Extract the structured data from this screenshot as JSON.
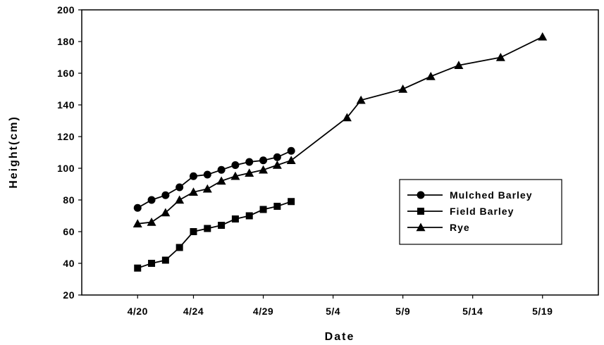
{
  "chart_data": {
    "type": "line",
    "title": "",
    "xlabel": "Date",
    "ylabel": "Height(cm)",
    "ylim": [
      20,
      200
    ],
    "yticks": [
      "20",
      "40",
      "60",
      "80",
      "100",
      "120",
      "140",
      "160",
      "180",
      "200"
    ],
    "xlim": [
      "2000-04-16",
      "2000-05-23"
    ],
    "xticks": [
      {
        "label": "4/20",
        "date": "2000-04-20"
      },
      {
        "label": "4/24",
        "date": "2000-04-24"
      },
      {
        "label": "4/29",
        "date": "2000-04-29"
      },
      {
        "label": "5/4",
        "date": "2000-05-04"
      },
      {
        "label": "5/9",
        "date": "2000-05-09"
      },
      {
        "label": "5/14",
        "date": "2000-05-14"
      },
      {
        "label": "5/19",
        "date": "2000-05-19"
      }
    ],
    "grid": false,
    "legend_position": "right",
    "series": [
      {
        "name": "Mulched Barley",
        "marker": "circle",
        "x": [
          "2000-04-20",
          "2000-04-21",
          "2000-04-22",
          "2000-04-23",
          "2000-04-24",
          "2000-04-25",
          "2000-04-26",
          "2000-04-27",
          "2000-04-28",
          "2000-04-29",
          "2000-04-30",
          "2000-05-01"
        ],
        "y": [
          75,
          80,
          83,
          88,
          95,
          96,
          99,
          102,
          104,
          105,
          107,
          111
        ]
      },
      {
        "name": "Field Barley",
        "marker": "square",
        "x": [
          "2000-04-20",
          "2000-04-21",
          "2000-04-22",
          "2000-04-23",
          "2000-04-24",
          "2000-04-25",
          "2000-04-26",
          "2000-04-27",
          "2000-04-28",
          "2000-04-29",
          "2000-04-30",
          "2000-05-01"
        ],
        "y": [
          37,
          40,
          42,
          50,
          60,
          62,
          64,
          68,
          70,
          74,
          76,
          79
        ]
      },
      {
        "name": "Rye",
        "marker": "triangle",
        "x": [
          "2000-04-20",
          "2000-04-21",
          "2000-04-22",
          "2000-04-23",
          "2000-04-24",
          "2000-04-25",
          "2000-04-26",
          "2000-04-27",
          "2000-04-28",
          "2000-04-29",
          "2000-04-30",
          "2000-05-01",
          "2000-05-05",
          "2000-05-06",
          "2000-05-09",
          "2000-05-11",
          "2000-05-13",
          "2000-05-16",
          "2000-05-19"
        ],
        "y": [
          65,
          66,
          72,
          80,
          85,
          87,
          92,
          95,
          97,
          99,
          102,
          105,
          132,
          143,
          150,
          158,
          165,
          170,
          183
        ]
      }
    ]
  }
}
